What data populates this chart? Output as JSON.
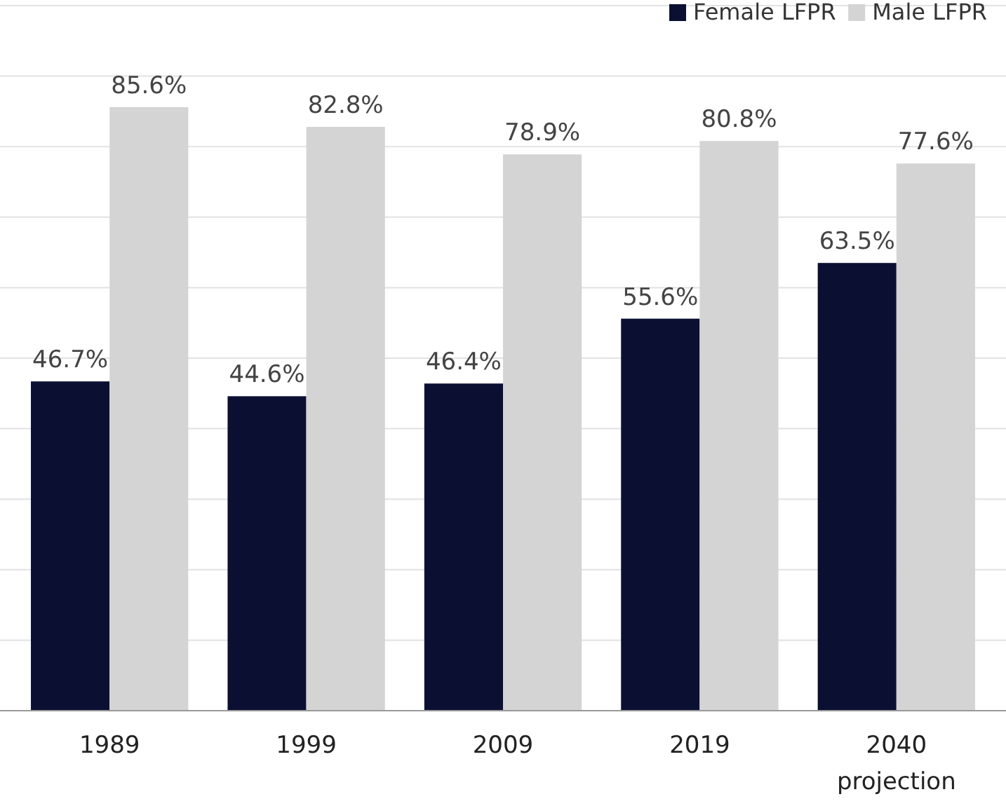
{
  "chart_data": {
    "type": "bar",
    "categories": [
      "1989",
      "1999",
      "2009",
      "2019",
      "2040 projection"
    ],
    "series": [
      {
        "name": "Female LFPR",
        "color": "#0b1033",
        "values": [
          46.7,
          44.6,
          46.4,
          55.6,
          63.5
        ],
        "value_labels": [
          "46.7%",
          "44.6%",
          "46.4%",
          "55.6%",
          "63.5%"
        ]
      },
      {
        "name": "Male LFPR",
        "color": "#d4d4d4",
        "values": [
          85.6,
          82.8,
          78.9,
          80.8,
          77.6
        ],
        "value_labels": [
          "85.6%",
          "82.8%",
          "78.9%",
          "80.8%",
          "77.6%"
        ]
      }
    ],
    "ylim": [
      0,
      100
    ],
    "yticks": [
      {
        "value": 0,
        "label": null
      },
      {
        "value": 10,
        "label": null
      },
      {
        "value": 20,
        "label": null
      },
      {
        "value": 30,
        "label": null
      },
      {
        "value": 40,
        "label": null
      },
      {
        "value": 50,
        "label": null
      },
      {
        "value": 60,
        "label": null
      },
      {
        "value": 70,
        "label": null
      },
      {
        "value": 80,
        "label": null
      },
      {
        "value": 90,
        "label": null
      },
      {
        "value": 100,
        "label": null
      }
    ],
    "grid": "y",
    "legend": "top right"
  }
}
